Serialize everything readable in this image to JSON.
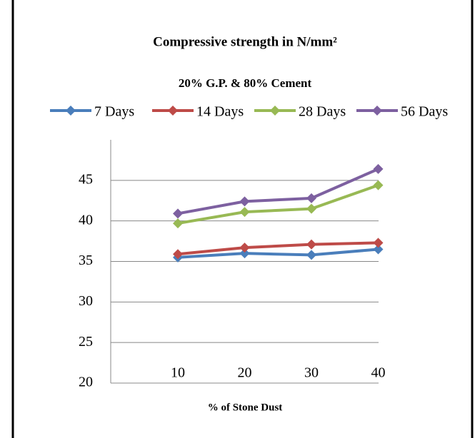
{
  "chart_data": {
    "type": "line",
    "title": "Compressive strength in N/mm²",
    "subtitle": "20% G.P. & 80% Cement",
    "x_label": "% of Stone Dust",
    "categories": [
      "10",
      "20",
      "30",
      "40"
    ],
    "series": [
      {
        "name": "7 Days",
        "color": "#4a7ebb",
        "values": [
          35.5,
          36.0,
          35.8,
          36.5
        ]
      },
      {
        "name": "14 Days",
        "color": "#be4b48",
        "values": [
          35.9,
          36.7,
          37.1,
          37.3
        ]
      },
      {
        "name": "28 Days",
        "color": "#98b954",
        "values": [
          39.7,
          41.1,
          41.5,
          44.4
        ]
      },
      {
        "name": "56 Days",
        "color": "#7d60a0",
        "values": [
          40.9,
          42.4,
          42.8,
          46.4
        ]
      }
    ],
    "ylim": [
      20,
      50
    ],
    "yticks": [
      20,
      25,
      30,
      35,
      40,
      45
    ],
    "grid": true
  }
}
